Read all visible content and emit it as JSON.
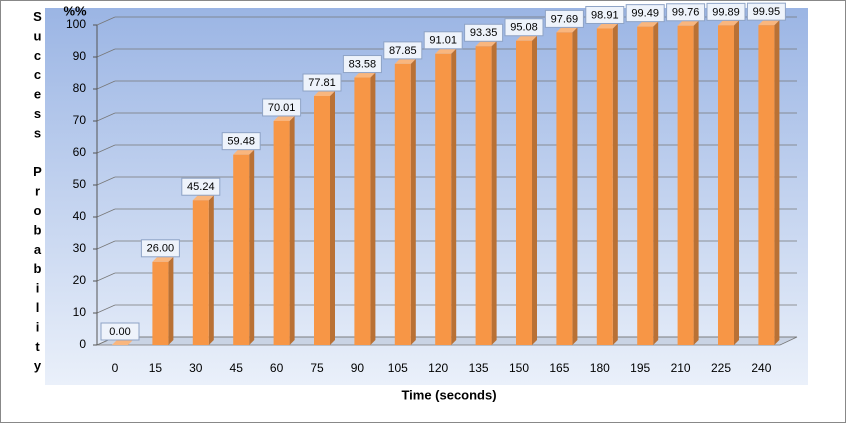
{
  "chart_data": {
    "type": "bar3d",
    "x_label": "Time (seconds)",
    "y_label": "Success Probability",
    "y_unit": "%%",
    "categories": [
      "0",
      "15",
      "30",
      "45",
      "60",
      "75",
      "90",
      "105",
      "120",
      "135",
      "150",
      "165",
      "180",
      "195",
      "210",
      "225",
      "240"
    ],
    "values": [
      0,
      26,
      45.24,
      59.48,
      70.01,
      77.81,
      83.58,
      87.85,
      91.01,
      93.35,
      95.08,
      97.69,
      98.91,
      99.49,
      99.76,
      99.89,
      99.95
    ],
    "value_labels": [
      "0.00",
      "26.00",
      "45.24",
      "59.48",
      "70.01",
      "77.81",
      "83.58",
      "87.85",
      "91.01",
      "93.35",
      "95.08",
      "97.69",
      "98.91",
      "99.49",
      "99.76",
      "99.89",
      "99.95"
    ],
    "color": "#f79646",
    "ylim": [
      0,
      100
    ],
    "yticks": [
      0,
      10,
      20,
      30,
      40,
      50,
      60,
      70,
      80,
      90,
      100
    ],
    "grid": true
  }
}
